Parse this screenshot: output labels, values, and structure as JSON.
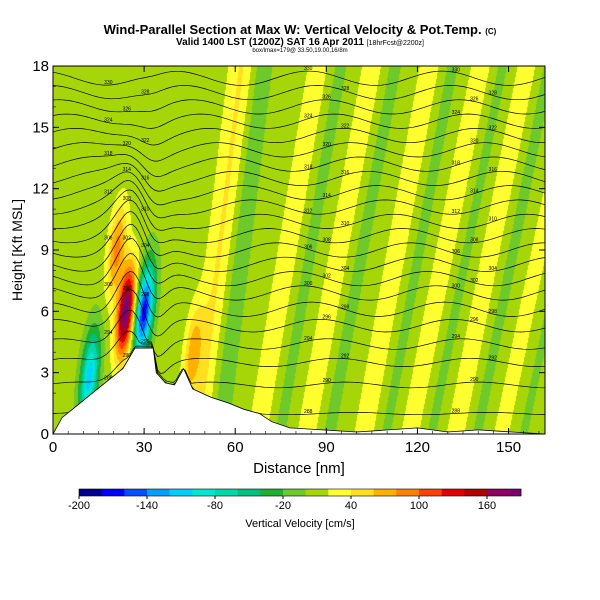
{
  "header": {
    "title": "Wind-Parallel Section at Max W: Vertical Velocity & Pot.Temp.",
    "title_mark": "(C)",
    "subtitle": "Valid 1400 LST (1200Z) SAT 16 Apr 2011",
    "subtitle_note": "[18hrFcst@2200z]",
    "info": "box/lmax=179@ 33.50,19.00,16/8m"
  },
  "chart_data": {
    "type": "heatmap",
    "title": "Wind-Parallel Section at Max W: Vertical Velocity & Pot.Temp.",
    "xlabel": "Distance [nm]",
    "ylabel": "Height [Kft MSL]",
    "xlim": [
      0,
      162
    ],
    "ylim": [
      0,
      18
    ],
    "xticks": [
      0,
      30,
      60,
      90,
      120,
      150
    ],
    "yticks": [
      0,
      3,
      6,
      9,
      12,
      15,
      18
    ],
    "colorbar": {
      "label": "Vertical Velocity [cm/s]",
      "tick_labels": [
        -200,
        -140,
        -80,
        -20,
        40,
        100,
        160
      ],
      "range": [
        -200,
        190
      ],
      "bins": [
        {
          "from": -200,
          "to": -180,
          "color": "#00008f"
        },
        {
          "from": -180,
          "to": -160,
          "color": "#0000ff"
        },
        {
          "from": -160,
          "to": -140,
          "color": "#0050ff"
        },
        {
          "from": -140,
          "to": -120,
          "color": "#00a0ff"
        },
        {
          "from": -120,
          "to": -100,
          "color": "#00d0ff"
        },
        {
          "from": -100,
          "to": -80,
          "color": "#00e8d0"
        },
        {
          "from": -80,
          "to": -60,
          "color": "#00d8a8"
        },
        {
          "from": -60,
          "to": -40,
          "color": "#00c080"
        },
        {
          "from": -40,
          "to": -20,
          "color": "#20b030"
        },
        {
          "from": -20,
          "to": 0,
          "color": "#6ec92a"
        },
        {
          "from": 0,
          "to": 20,
          "color": "#a6d608"
        },
        {
          "from": 20,
          "to": 40,
          "color": "#ffff30"
        },
        {
          "from": 40,
          "to": 60,
          "color": "#ffe020"
        },
        {
          "from": 60,
          "to": 80,
          "color": "#ffb000"
        },
        {
          "from": 80,
          "to": 100,
          "color": "#ff8000"
        },
        {
          "from": 100,
          "to": 120,
          "color": "#ff4000"
        },
        {
          "from": 120,
          "to": 140,
          "color": "#e00000"
        },
        {
          "from": 140,
          "to": 160,
          "color": "#b00000"
        },
        {
          "from": 160,
          "to": 180,
          "color": "#900060"
        },
        {
          "from": 180,
          "to": 200,
          "color": "#7a0070"
        }
      ]
    },
    "contour_variable": "Potential Temperature",
    "terrain_profile": [
      [
        0,
        0
      ],
      [
        3,
        0.8
      ],
      [
        8,
        1.4
      ],
      [
        13,
        2.0
      ],
      [
        18,
        2.6
      ],
      [
        23,
        3.2
      ],
      [
        27,
        4.2
      ],
      [
        33,
        4.2
      ],
      [
        34,
        3.0
      ],
      [
        37,
        2.5
      ],
      [
        40,
        2.4
      ],
      [
        43,
        3.2
      ],
      [
        46,
        2.2
      ],
      [
        52,
        1.8
      ],
      [
        58,
        1.5
      ],
      [
        63,
        1.2
      ],
      [
        68,
        1.0
      ],
      [
        72,
        0.6
      ],
      [
        78,
        0.3
      ],
      [
        100,
        0.1
      ],
      [
        120,
        0.3
      ],
      [
        130,
        0.1
      ],
      [
        140,
        0.2
      ],
      [
        162,
        0
      ]
    ],
    "w_features": [
      {
        "kind": "updraft",
        "x": 24,
        "z": 6.0,
        "peak": 185
      },
      {
        "kind": "downdraft",
        "x": 30,
        "z": 6.0,
        "peak": -180
      },
      {
        "kind": "downdraft",
        "x": 12,
        "z": 2.8,
        "peak": -120
      },
      {
        "kind": "updraft",
        "x": 21,
        "z": 9.0,
        "peak": 80
      },
      {
        "kind": "updraft",
        "x": 46,
        "z": 4.0,
        "peak": 60
      }
    ],
    "wave_bands": [
      {
        "x0": 48,
        "slope": 0.8,
        "amp": 35
      },
      {
        "x0": 68,
        "slope": 1.1,
        "amp": 25
      },
      {
        "x0": 84,
        "slope": 1.2,
        "amp": 25
      },
      {
        "x0": 103,
        "slope": 1.2,
        "amp": 25
      },
      {
        "x0": 118,
        "slope": 1.3,
        "amp": 25
      },
      {
        "x0": 133,
        "slope": 1.3,
        "amp": 25
      },
      {
        "x0": 148,
        "slope": 1.4,
        "amp": 20
      }
    ],
    "theta_contours": [
      {
        "level": 288,
        "z": 1.0
      },
      {
        "level": 290,
        "z": 2.4
      },
      {
        "level": 292,
        "z": 3.5
      },
      {
        "level": 294,
        "z": 4.4
      },
      {
        "level": 296,
        "z": 5.3
      },
      {
        "level": 298,
        "z": 6.1
      },
      {
        "level": 300,
        "z": 6.9
      },
      {
        "level": 302,
        "z": 7.6
      },
      {
        "level": 304,
        "z": 8.3
      },
      {
        "level": 306,
        "z": 9.0
      },
      {
        "level": 308,
        "z": 9.7
      },
      {
        "level": 310,
        "z": 10.4
      },
      {
        "level": 312,
        "z": 11.1
      },
      {
        "level": 314,
        "z": 11.8
      },
      {
        "level": 316,
        "z": 12.5
      },
      {
        "level": 318,
        "z": 13.2
      },
      {
        "level": 320,
        "z": 13.9
      },
      {
        "level": 322,
        "z": 14.6
      },
      {
        "level": 324,
        "z": 15.3
      },
      {
        "level": 326,
        "z": 16.0
      },
      {
        "level": 328,
        "z": 16.7
      },
      {
        "level": 330,
        "z": 17.4
      }
    ]
  }
}
